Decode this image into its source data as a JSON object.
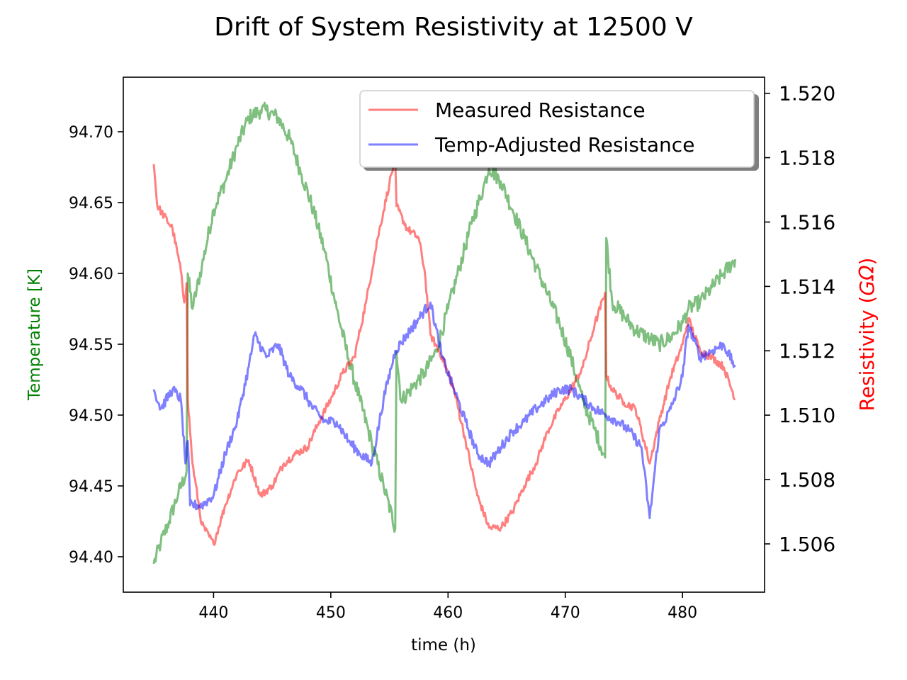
{
  "chart_data": {
    "type": "line",
    "title": "Drift of System Resistivity at 12500 V",
    "xlabel": "time (h)",
    "ylabel_left": "Temperature [K]",
    "ylabel_right_prefix": "Resistivity (",
    "ylabel_right_unit": "GΩ",
    "ylabel_right_suffix": ")",
    "xlim": [
      432.3,
      487.0
    ],
    "ylim_left": [
      94.375,
      94.7385
    ],
    "ylim_right": [
      1.5045,
      1.5205
    ],
    "x_ticks": [
      440,
      450,
      460,
      470,
      480
    ],
    "y_left_ticks": [
      "94.40",
      "94.45",
      "94.50",
      "94.55",
      "94.60",
      "94.65",
      "94.70"
    ],
    "y_right_ticks": [
      "1.506",
      "1.508",
      "1.510",
      "1.512",
      "1.514",
      "1.516",
      "1.518",
      "1.520"
    ],
    "grid": false,
    "legend_position": "top-right",
    "colors": {
      "temperature": "#008000",
      "measured": "#ff0000",
      "adjusted": "#0000ff",
      "ylabel_left": "#008000",
      "ylabel_right": "#ff0000"
    },
    "series": [
      {
        "name": "",
        "axis": "left",
        "color": "#008000",
        "x": [
          434.9,
          435.5,
          436.2,
          437.0,
          437.7,
          437.8,
          438.2,
          439.0,
          440.0,
          441.0,
          442.0,
          443.0,
          444.0,
          444.5,
          445.5,
          446.5,
          447.5,
          448.5,
          449.5,
          450.5,
          451.5,
          452.5,
          453.5,
          454.5,
          455.5,
          455.6,
          456.0,
          457.0,
          458.0,
          459.0,
          460.0,
          461.0,
          462.0,
          463.0,
          463.5,
          464.5,
          465.5,
          466.5,
          467.5,
          468.5,
          469.5,
          470.5,
          471.5,
          472.5,
          473.4,
          473.5,
          474.0,
          475.0,
          476.0,
          477.0,
          478.0,
          479.0,
          480.0,
          480.5,
          481.5,
          482.5,
          483.5,
          484.5
        ],
        "values": [
          94.395,
          94.41,
          94.425,
          94.445,
          94.46,
          94.6,
          94.575,
          94.605,
          94.645,
          94.665,
          94.69,
          94.71,
          94.715,
          94.715,
          94.71,
          94.695,
          94.67,
          94.645,
          94.615,
          94.575,
          94.54,
          94.51,
          94.48,
          94.45,
          94.42,
          94.545,
          94.51,
          94.52,
          94.53,
          94.545,
          94.575,
          94.605,
          94.635,
          94.66,
          94.675,
          94.665,
          94.645,
          94.625,
          94.605,
          94.585,
          94.565,
          94.54,
          94.51,
          94.49,
          94.47,
          94.625,
          94.58,
          94.57,
          94.56,
          94.555,
          94.55,
          94.555,
          94.565,
          94.575,
          94.58,
          94.59,
          94.6,
          94.61
        ]
      },
      {
        "name": "Measured Resistance",
        "axis": "right",
        "color": "#ff0000",
        "x": [
          434.9,
          435.2,
          436.5,
          437.2,
          437.5,
          437.7,
          437.8,
          438.2,
          439.0,
          440.0,
          441.0,
          442.0,
          443.0,
          444.0,
          445.0,
          446.0,
          447.0,
          448.0,
          449.0,
          450.0,
          451.0,
          452.0,
          453.0,
          454.0,
          455.0,
          455.5,
          455.6,
          456.5,
          457.5,
          458.0,
          458.5,
          459.5,
          460.5,
          461.5,
          462.5,
          463.5,
          464.5,
          465.5,
          466.5,
          467.5,
          468.5,
          469.5,
          470.5,
          471.5,
          472.5,
          473.4,
          473.5,
          474.0,
          475.0,
          476.0,
          477.0,
          477.2,
          478.0,
          479.0,
          480.0,
          480.5,
          481.5,
          482.5,
          483.5,
          484.5
        ],
        "values": [
          1.5178,
          1.5165,
          1.5158,
          1.5145,
          1.5135,
          1.5141,
          1.5105,
          1.5085,
          1.5066,
          1.506,
          1.5072,
          1.5082,
          1.5086,
          1.5075,
          1.5078,
          1.5085,
          1.5088,
          1.509,
          1.5098,
          1.5105,
          1.5113,
          1.5118,
          1.5135,
          1.5155,
          1.5172,
          1.518,
          1.5165,
          1.5158,
          1.5155,
          1.5145,
          1.5125,
          1.5118,
          1.5108,
          1.5092,
          1.5075,
          1.5065,
          1.5065,
          1.507,
          1.5078,
          1.5085,
          1.5095,
          1.5102,
          1.5108,
          1.5115,
          1.5128,
          1.5138,
          1.5112,
          1.5108,
          1.5104,
          1.5102,
          1.5088,
          1.5085,
          1.5098,
          1.5112,
          1.5122,
          1.513,
          1.512,
          1.5118,
          1.5115,
          1.5105
        ]
      },
      {
        "name": "Temp-Adjusted Resistance",
        "axis": "right",
        "color": "#0000ff",
        "x": [
          434.9,
          435.5,
          436.5,
          437.2,
          437.6,
          437.8,
          438.0,
          439.0,
          440.0,
          441.0,
          442.0,
          443.0,
          443.5,
          444.5,
          445.5,
          446.5,
          447.5,
          448.5,
          449.5,
          450.5,
          451.5,
          452.5,
          453.5,
          454.5,
          455.5,
          456.5,
          457.5,
          458.5,
          459.5,
          460.5,
          461.5,
          462.5,
          463.5,
          464.5,
          465.5,
          466.5,
          467.5,
          468.5,
          469.5,
          470.5,
          471.5,
          472.5,
          473.5,
          474.5,
          475.5,
          476.5,
          477.2,
          478.0,
          479.0,
          480.0,
          480.5,
          481.5,
          482.5,
          483.5,
          484.5
        ],
        "values": [
          1.5108,
          1.5102,
          1.5108,
          1.5105,
          1.5085,
          1.5092,
          1.5072,
          1.5072,
          1.5075,
          1.5088,
          1.5098,
          1.5115,
          1.5125,
          1.5118,
          1.5122,
          1.5112,
          1.5108,
          1.5102,
          1.5098,
          1.5098,
          1.5092,
          1.5088,
          1.5085,
          1.5105,
          1.512,
          1.5125,
          1.513,
          1.5135,
          1.5118,
          1.5108,
          1.5098,
          1.5088,
          1.5085,
          1.509,
          1.5095,
          1.5098,
          1.5102,
          1.5105,
          1.5108,
          1.5108,
          1.5105,
          1.5102,
          1.51,
          1.5098,
          1.5095,
          1.509,
          1.5068,
          1.5095,
          1.5102,
          1.5112,
          1.5128,
          1.5118,
          1.512,
          1.5122,
          1.5115
        ]
      }
    ]
  }
}
